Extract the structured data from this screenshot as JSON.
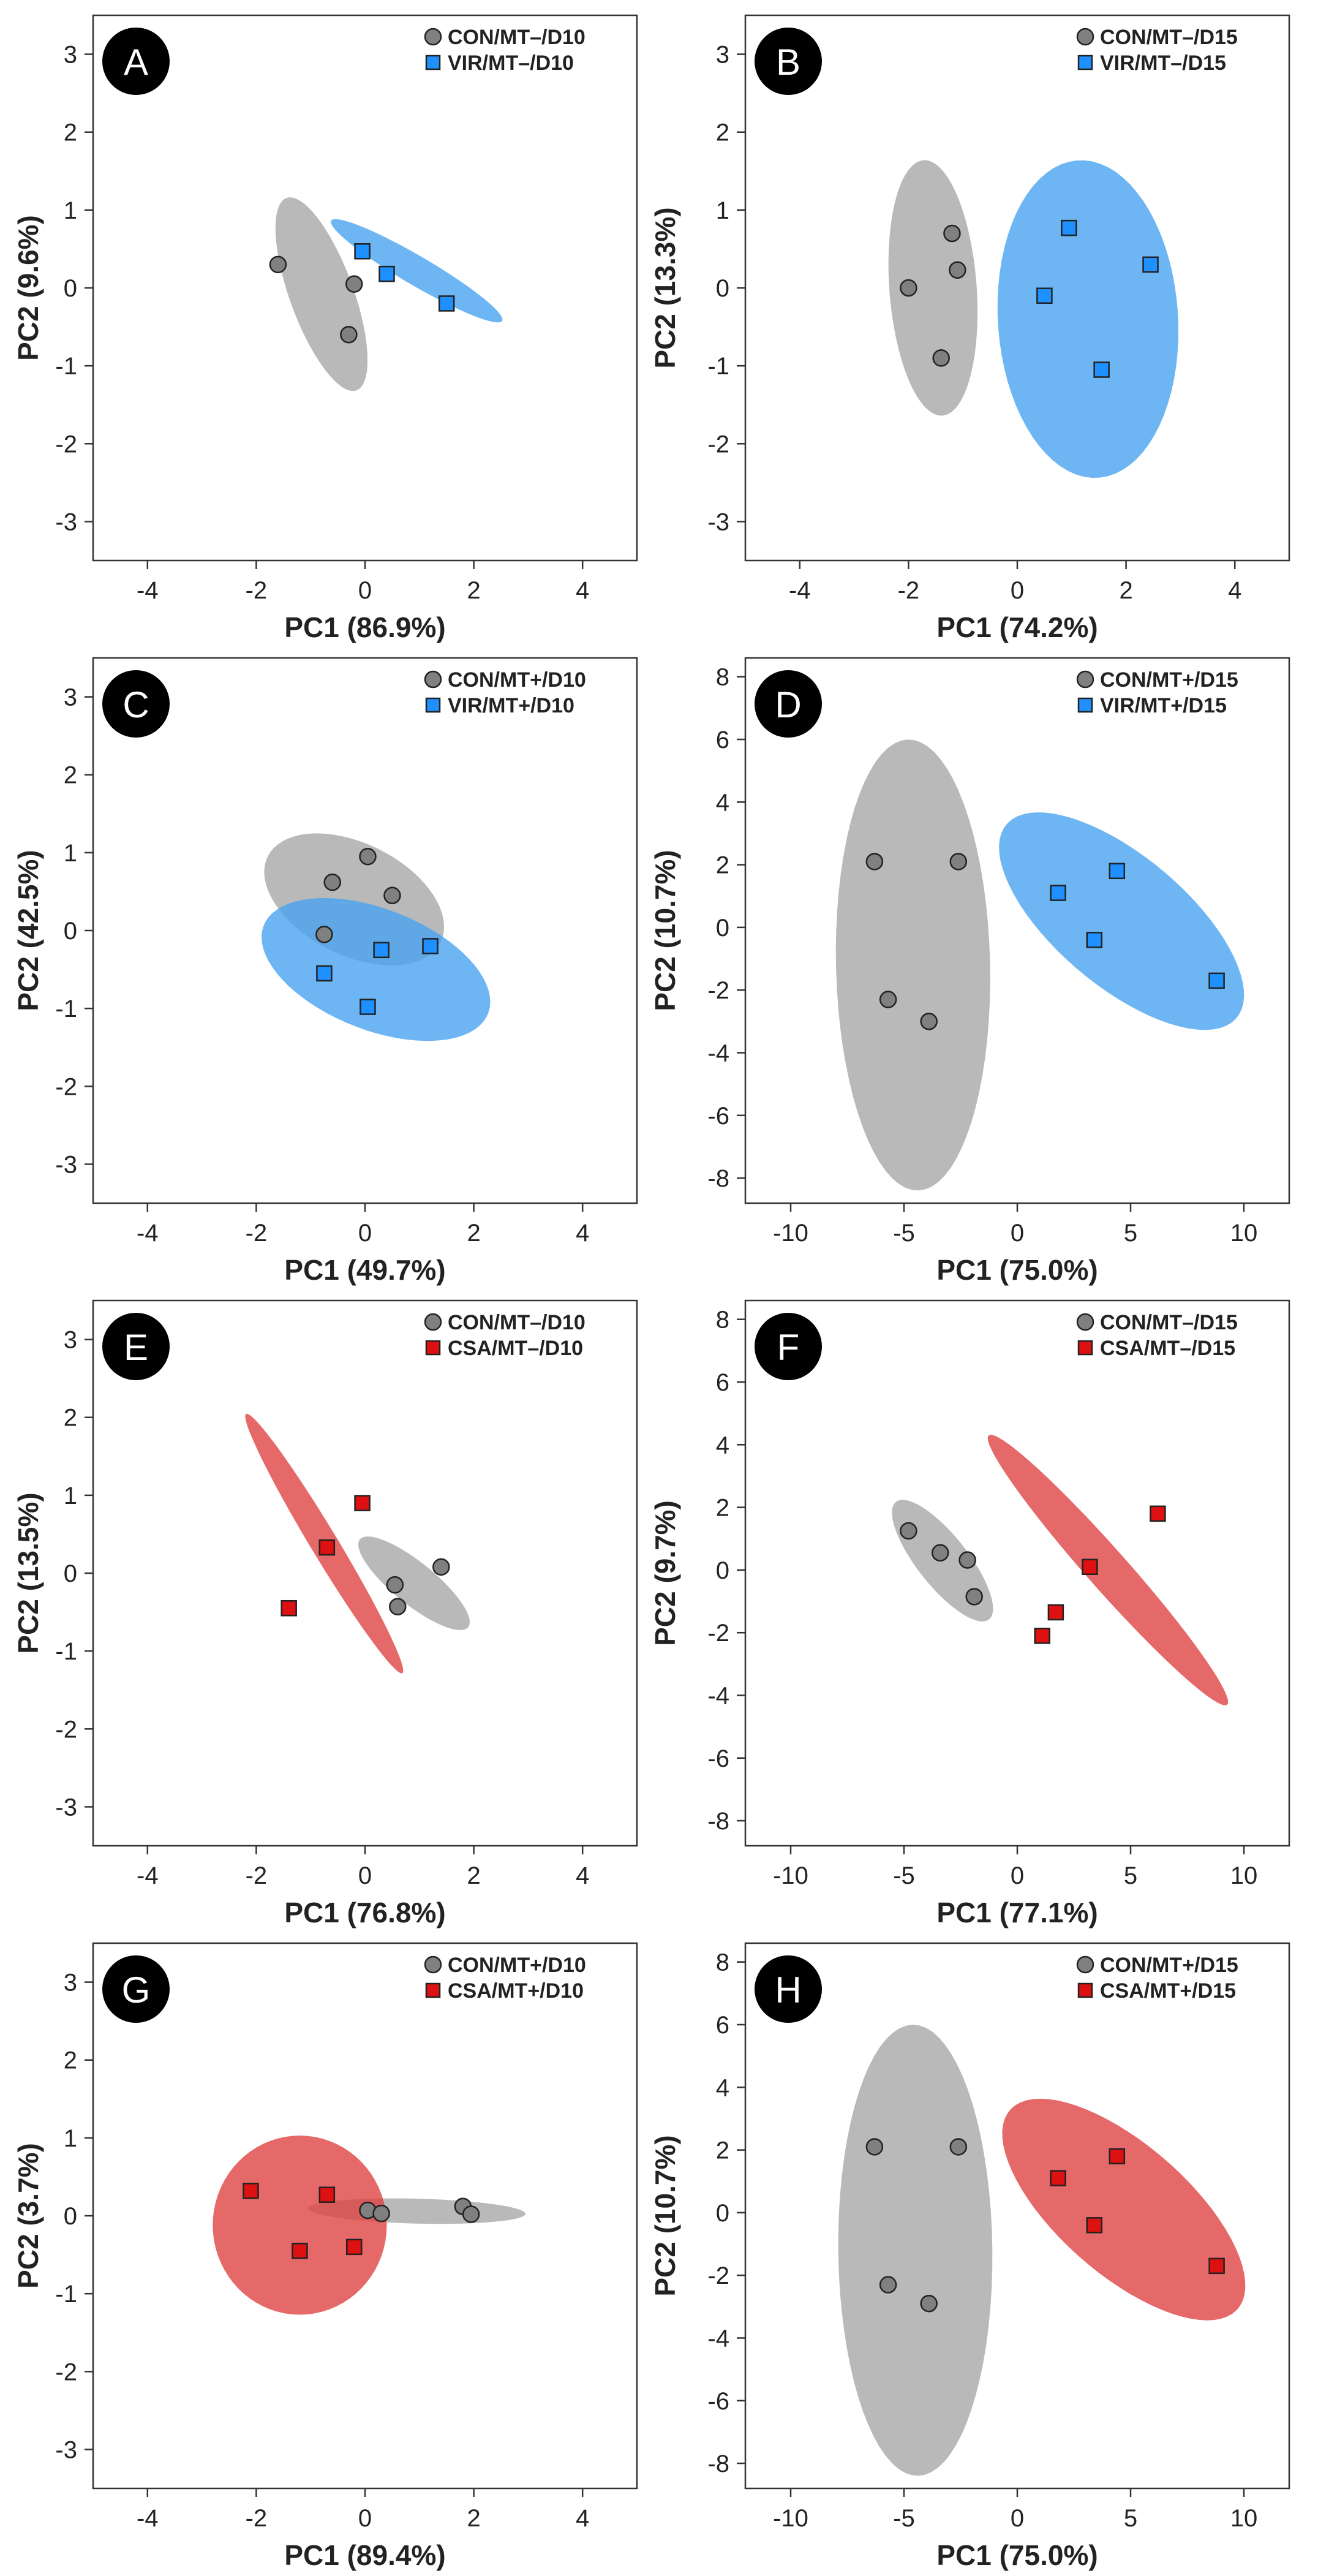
{
  "colors": {
    "con_fill": "#808080",
    "con_ellipse": "#a8a8a8",
    "vir_fill": "#1e90ff",
    "vir_ellipse": "#4aa3f0",
    "csa_fill": "#dd1111",
    "csa_ellipse": "#e04444"
  },
  "chart_data": [
    {
      "type": "scatter",
      "label": "A",
      "xlabel": "PC1 (86.9%)",
      "ylabel": "PC2 (9.6%)",
      "xlim": [
        -5,
        5
      ],
      "ylim": [
        -3.5,
        3.5
      ],
      "xticks": [
        "-4",
        "-2",
        "0",
        "2",
        "4"
      ],
      "yticks": [
        "-3",
        "-2",
        "-1",
        "0",
        "1",
        "2",
        "3"
      ],
      "legend_position": "top-right",
      "series": [
        {
          "name": "CON/MT–/D10",
          "marker": "circle",
          "color": "con",
          "points": [
            [
              -1.6,
              0.3
            ],
            [
              -0.2,
              0.05
            ],
            [
              -0.3,
              -0.6
            ]
          ],
          "ellipse": {
            "cx": -0.8,
            "cy": -0.08,
            "rx": 1.4,
            "ry": 0.55,
            "angle": -60
          }
        },
        {
          "name": "VIR/MT–/D10",
          "marker": "square",
          "color": "vir",
          "points": [
            [
              -0.05,
              0.47
            ],
            [
              0.4,
              0.18
            ],
            [
              1.5,
              -0.2
            ]
          ],
          "ellipse": {
            "cx": 0.95,
            "cy": 0.22,
            "rx": 1.7,
            "ry": 0.2,
            "angle": -22
          }
        }
      ]
    },
    {
      "type": "scatter",
      "label": "B",
      "xlabel": "PC1 (74.2%)",
      "ylabel": "PC2 (13.3%)",
      "xlim": [
        -5,
        5
      ],
      "ylim": [
        -3.5,
        3.5
      ],
      "xticks": [
        "-4",
        "-2",
        "0",
        "2",
        "4"
      ],
      "yticks": [
        "-3",
        "-2",
        "-1",
        "0",
        "1",
        "2",
        "3"
      ],
      "legend_position": "top-right",
      "series": [
        {
          "name": "CON/MT–/D15",
          "marker": "circle",
          "color": "con",
          "points": [
            [
              -2.0,
              0.0
            ],
            [
              -1.2,
              0.7
            ],
            [
              -1.1,
              0.23
            ],
            [
              -1.4,
              -0.9
            ]
          ],
          "ellipse": {
            "cx": -1.55,
            "cy": 0.0,
            "rx": 1.65,
            "ry": 0.8,
            "angle": -83
          }
        },
        {
          "name": "VIR/MT–/D15",
          "marker": "square",
          "color": "vir",
          "points": [
            [
              0.5,
              -0.1
            ],
            [
              0.95,
              0.77
            ],
            [
              1.55,
              -1.05
            ],
            [
              2.45,
              0.3
            ]
          ],
          "ellipse": {
            "cx": 1.3,
            "cy": -0.4,
            "rx": 2.05,
            "ry": 1.65,
            "angle": -80
          }
        }
      ]
    },
    {
      "type": "scatter",
      "label": "C",
      "xlabel": "PC1 (49.7%)",
      "ylabel": "PC2 (42.5%)",
      "xlim": [
        -5,
        5
      ],
      "ylim": [
        -3.5,
        3.5
      ],
      "xticks": [
        "-4",
        "-2",
        "0",
        "2",
        "4"
      ],
      "yticks": [
        "-3",
        "-2",
        "-1",
        "0",
        "1",
        "2",
        "3"
      ],
      "legend_position": "top-right",
      "series": [
        {
          "name": "CON/MT+/D10",
          "marker": "circle",
          "color": "con",
          "points": [
            [
              -0.6,
              0.62
            ],
            [
              0.05,
              0.95
            ],
            [
              0.5,
              0.45
            ],
            [
              -0.75,
              -0.05
            ]
          ],
          "ellipse": {
            "cx": -0.2,
            "cy": 0.4,
            "rx": 1.7,
            "ry": 0.75,
            "angle": -15
          }
        },
        {
          "name": "VIR/MT+/D10",
          "marker": "square",
          "color": "vir",
          "points": [
            [
              -0.75,
              -0.55
            ],
            [
              0.05,
              -0.98
            ],
            [
              0.3,
              -0.25
            ],
            [
              1.2,
              -0.2
            ]
          ],
          "ellipse": {
            "cx": 0.2,
            "cy": -0.5,
            "rx": 2.15,
            "ry": 0.8,
            "angle": -13
          }
        }
      ]
    },
    {
      "type": "scatter",
      "label": "D",
      "xlabel": "PC1 (75.0%)",
      "ylabel": "PC2 (10.7%)",
      "xlim": [
        -12,
        12
      ],
      "ylim": [
        -8.8,
        8.6
      ],
      "xticks": [
        "-10",
        "-5",
        "0",
        "5",
        "10"
      ],
      "yticks": [
        "-8",
        "-6",
        "-4",
        "-2",
        "0",
        "2",
        "4",
        "6",
        "8"
      ],
      "legend_position": "top-right",
      "series": [
        {
          "name": "CON/MT+/D15",
          "marker": "circle",
          "color": "con",
          "points": [
            [
              -6.3,
              2.1
            ],
            [
              -2.6,
              2.1
            ],
            [
              -5.7,
              -2.3
            ],
            [
              -3.9,
              -3.0
            ]
          ],
          "ellipse": {
            "cx": -4.6,
            "cy": -1.2,
            "rx": 7.2,
            "ry": 3.4,
            "angle": -88
          }
        },
        {
          "name": "VIR/MT+/D15",
          "marker": "square",
          "color": "vir",
          "points": [
            [
              1.8,
              1.1
            ],
            [
              4.4,
              1.8
            ],
            [
              3.4,
              -0.4
            ],
            [
              8.8,
              -1.7
            ]
          ],
          "ellipse": {
            "cx": 4.6,
            "cy": 0.2,
            "rx": 6.0,
            "ry": 2.3,
            "angle": -28
          }
        }
      ]
    },
    {
      "type": "scatter",
      "label": "E",
      "xlabel": "PC1 (76.8%)",
      "ylabel": "PC2 (13.5%)",
      "xlim": [
        -5,
        5
      ],
      "ylim": [
        -3.5,
        3.5
      ],
      "xticks": [
        "-4",
        "-2",
        "0",
        "2",
        "4"
      ],
      "yticks": [
        "-3",
        "-2",
        "-1",
        "0",
        "1",
        "2",
        "3"
      ],
      "legend_position": "top-right",
      "series": [
        {
          "name": "CON/MT–/D10",
          "marker": "circle",
          "color": "con",
          "points": [
            [
              0.55,
              -0.15
            ],
            [
              1.4,
              0.08
            ],
            [
              0.6,
              -0.43
            ]
          ],
          "ellipse": {
            "cx": 0.9,
            "cy": -0.13,
            "rx": 1.15,
            "ry": 0.3,
            "angle": -28
          }
        },
        {
          "name": "CSA/MT–/D10",
          "marker": "square",
          "color": "csa",
          "points": [
            [
              -1.4,
              -0.45
            ],
            [
              -0.7,
              0.33
            ],
            [
              -0.05,
              0.9
            ]
          ],
          "ellipse": {
            "cx": -0.75,
            "cy": 0.38,
            "rx": 2.2,
            "ry": 0.22,
            "angle": -49
          }
        }
      ]
    },
    {
      "type": "scatter",
      "label": "F",
      "xlabel": "PC1 (77.1%)",
      "ylabel": "PC2 (9.7%)",
      "xlim": [
        -12,
        12
      ],
      "ylim": [
        -8.8,
        8.6
      ],
      "xticks": [
        "-10",
        "-5",
        "0",
        "5",
        "10"
      ],
      "yticks": [
        "-8",
        "-6",
        "-4",
        "-2",
        "0",
        "2",
        "4",
        "6",
        "8"
      ],
      "legend_position": "top-right",
      "series": [
        {
          "name": "CON/MT–/D15",
          "marker": "circle",
          "color": "con",
          "points": [
            [
              -4.8,
              1.25
            ],
            [
              -3.4,
              0.55
            ],
            [
              -2.2,
              0.32
            ],
            [
              -1.9,
              -0.85
            ]
          ],
          "ellipse": {
            "cx": -3.3,
            "cy": 0.3,
            "rx": 2.8,
            "ry": 0.95,
            "angle": -40
          }
        },
        {
          "name": "CSA/MT–/D15",
          "marker": "square",
          "color": "csa",
          "points": [
            [
              1.1,
              -2.1
            ],
            [
              1.7,
              -1.35
            ],
            [
              3.2,
              0.1
            ],
            [
              6.2,
              1.8
            ]
          ],
          "ellipse": {
            "cx": 4.0,
            "cy": 0.0,
            "rx": 6.8,
            "ry": 0.75,
            "angle": -39
          }
        }
      ]
    },
    {
      "type": "scatter",
      "label": "G",
      "xlabel": "PC1 (89.4%)",
      "ylabel": "PC2 (3.7%)",
      "xlim": [
        -5,
        5
      ],
      "ylim": [
        -3.5,
        3.5
      ],
      "xticks": [
        "-4",
        "-2",
        "0",
        "2",
        "4"
      ],
      "yticks": [
        "-3",
        "-2",
        "-1",
        "0",
        "1",
        "2",
        "3"
      ],
      "legend_position": "top-right",
      "series": [
        {
          "name": "CON/MT+/D10",
          "marker": "circle",
          "color": "con",
          "points": [
            [
              0.05,
              0.07
            ],
            [
              0.3,
              0.03
            ],
            [
              1.8,
              0.12
            ],
            [
              1.95,
              0.02
            ]
          ],
          "ellipse": {
            "cx": 0.95,
            "cy": 0.06,
            "rx": 2.0,
            "ry": 0.16,
            "angle": -1
          }
        },
        {
          "name": "CSA/MT+/D10",
          "marker": "square",
          "color": "csa",
          "points": [
            [
              -2.1,
              0.32
            ],
            [
              -0.7,
              0.27
            ],
            [
              -1.2,
              -0.45
            ],
            [
              -0.2,
              -0.4
            ]
          ],
          "ellipse": {
            "cx": -1.2,
            "cy": -0.12,
            "rx": 1.6,
            "ry": 1.15,
            "angle": 0
          }
        }
      ]
    },
    {
      "type": "scatter",
      "label": "H",
      "xlabel": "PC1 (75.0%)",
      "ylabel": "PC2 (10.7%)",
      "xlim": [
        -12,
        12
      ],
      "ylim": [
        -8.8,
        8.6
      ],
      "xticks": [
        "-10",
        "-5",
        "0",
        "5",
        "10"
      ],
      "yticks": [
        "-8",
        "-6",
        "-4",
        "-2",
        "0",
        "2",
        "4",
        "6",
        "8"
      ],
      "legend_position": "top-right",
      "series": [
        {
          "name": "CON/MT+/D15",
          "marker": "circle",
          "color": "con",
          "points": [
            [
              -6.3,
              2.1
            ],
            [
              -2.6,
              2.1
            ],
            [
              -5.7,
              -2.3
            ],
            [
              -3.9,
              -2.9
            ]
          ],
          "ellipse": {
            "cx": -4.5,
            "cy": -1.2,
            "rx": 7.2,
            "ry": 3.4,
            "angle": -89
          }
        },
        {
          "name": "CSA/MT+/D15",
          "marker": "square",
          "color": "csa",
          "points": [
            [
              1.8,
              1.1
            ],
            [
              4.4,
              1.8
            ],
            [
              3.4,
              -0.4
            ],
            [
              8.8,
              -1.7
            ]
          ],
          "ellipse": {
            "cx": 4.7,
            "cy": 0.1,
            "rx": 6.0,
            "ry": 2.3,
            "angle": -29
          }
        }
      ]
    }
  ]
}
